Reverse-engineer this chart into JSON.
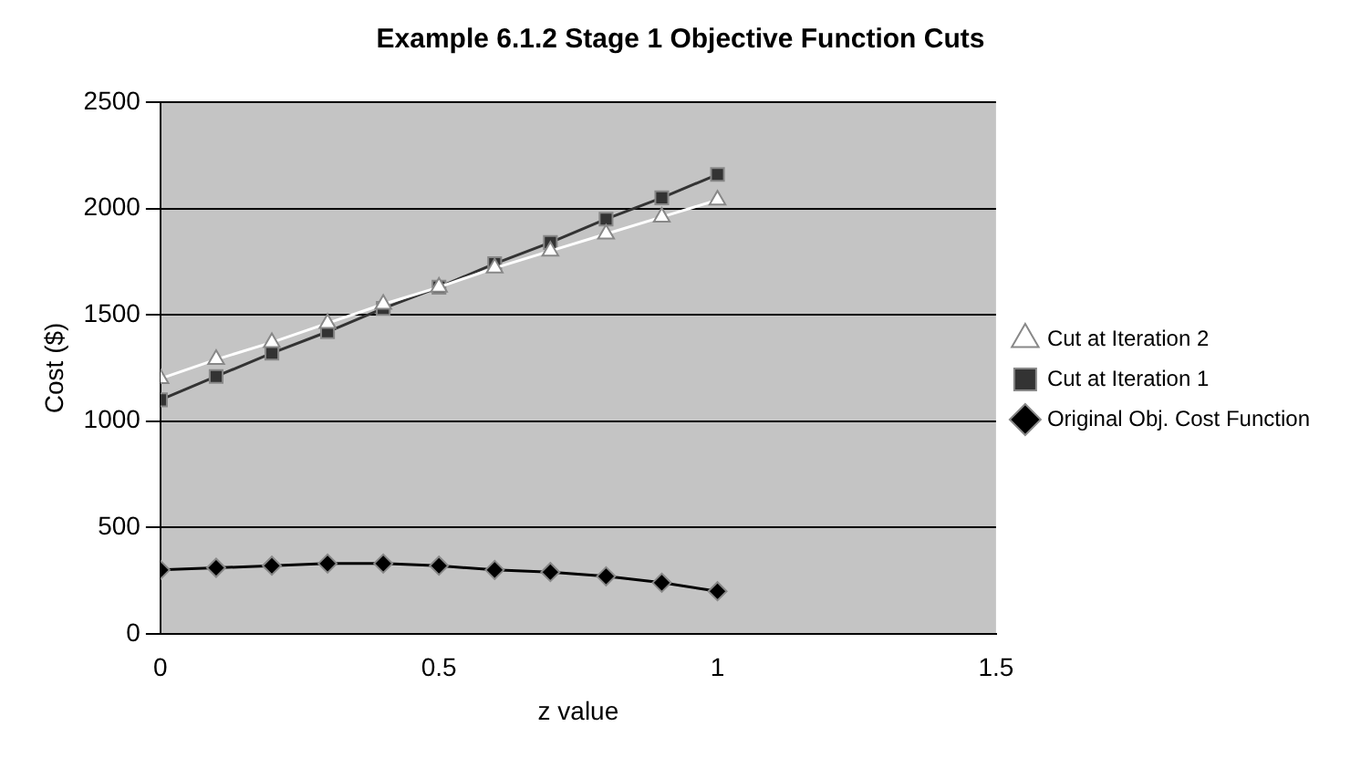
{
  "chart_data": {
    "type": "line",
    "title": "Example 6.1.2 Stage 1 Objective Function Cuts",
    "xlabel": "z value",
    "ylabel": "Cost ($)",
    "x": [
      0,
      0.1,
      0.2,
      0.3,
      0.4,
      0.5,
      0.6,
      0.7,
      0.8,
      0.9,
      1
    ],
    "xlim": [
      0,
      1.5
    ],
    "xticks": [
      0,
      0.5,
      1,
      1.5
    ],
    "ylim": [
      0,
      2500
    ],
    "yticks": [
      0,
      500,
      1000,
      1500,
      2000,
      2500
    ],
    "grid": "y",
    "legend": "right",
    "series": [
      {
        "name": "Original Obj. Cost Function",
        "color": "#000000",
        "marker": "diamond",
        "values": [
          300,
          310,
          320,
          330,
          330,
          320,
          300,
          290,
          270,
          240,
          200
        ]
      },
      {
        "name": "Cut at Iteration 1",
        "color": "#333333",
        "marker": "square",
        "values": [
          1100,
          1210,
          1320,
          1420,
          1530,
          1630,
          1740,
          1840,
          1950,
          2050,
          2160
        ]
      },
      {
        "name": "Cut at Iteration 2",
        "color": "#ffffff",
        "marker": "triangle",
        "values": [
          1200,
          1290,
          1370,
          1460,
          1550,
          1630,
          1720,
          1800,
          1880,
          1960,
          2040
        ]
      }
    ]
  }
}
